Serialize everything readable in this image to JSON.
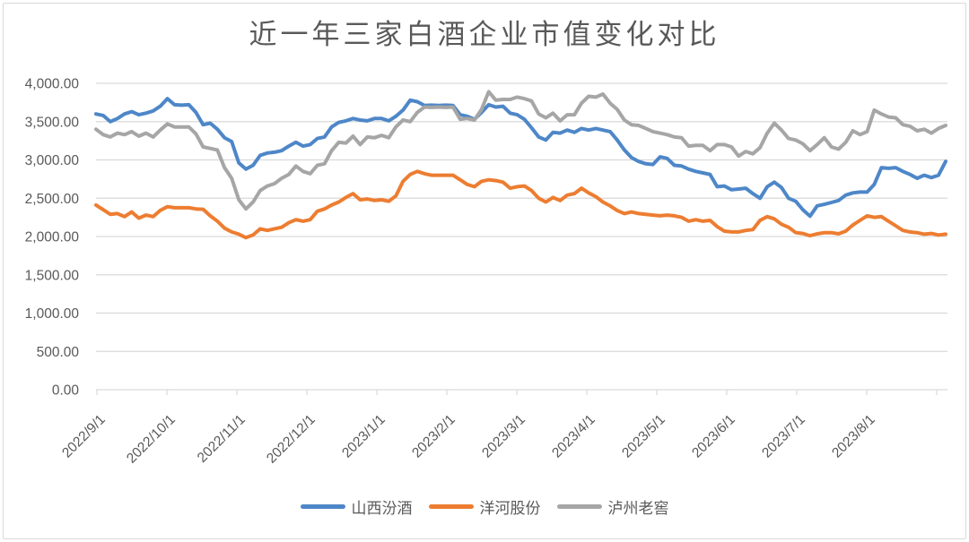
{
  "chart_data": {
    "type": "line",
    "title": "近一年三家白酒企业市值变化对比",
    "xlabel": "",
    "ylabel": "",
    "ylim": [
      0,
      4000
    ],
    "y_tick_step": 500,
    "grid": "horizontal",
    "legend_position": "bottom",
    "y_tick_labels": [
      "0.00",
      "500.00",
      "1,000.00",
      "1,500.00",
      "2,000.00",
      "2,500.00",
      "3,000.00",
      "3,500.00",
      "4,000.00"
    ],
    "x_tick_labels": [
      "2022/9/1",
      "2022/10/1",
      "2022/11/1",
      "2022/12/1",
      "2023/1/1",
      "2023/2/1",
      "2023/3/1",
      "2023/4/1",
      "2023/5/1",
      "2023/6/1",
      "2023/7/1",
      "2023/8/1"
    ],
    "colors": {
      "grid": "#d9d9d9",
      "axis": "#d9d9d9",
      "text": "#595959",
      "title_text": "#595959",
      "frame_border": "#d9d9d9",
      "background": "#ffffff"
    },
    "series": [
      {
        "name": "山西汾酒",
        "slug": "shanxi-fenjiu",
        "color": "#4E87C8",
        "values": [
          3600,
          3580,
          3500,
          3540,
          3600,
          3630,
          3590,
          3610,
          3640,
          3700,
          3800,
          3720,
          3715,
          3720,
          3620,
          3460,
          3480,
          3400,
          3290,
          3240,
          2960,
          2880,
          2930,
          3060,
          3090,
          3100,
          3120,
          3180,
          3230,
          3180,
          3200,
          3280,
          3300,
          3430,
          3490,
          3510,
          3540,
          3520,
          3510,
          3540,
          3540,
          3510,
          3570,
          3650,
          3780,
          3760,
          3710,
          3715,
          3710,
          3715,
          3710,
          3590,
          3570,
          3530,
          3620,
          3720,
          3690,
          3700,
          3610,
          3590,
          3530,
          3420,
          3300,
          3260,
          3360,
          3350,
          3390,
          3360,
          3410,
          3390,
          3410,
          3390,
          3370,
          3260,
          3130,
          3030,
          2980,
          2950,
          2940,
          3040,
          3020,
          2930,
          2920,
          2880,
          2850,
          2830,
          2810,
          2650,
          2660,
          2610,
          2620,
          2630,
          2560,
          2500,
          2650,
          2710,
          2640,
          2500,
          2460,
          2350,
          2265,
          2400,
          2420,
          2445,
          2470,
          2540,
          2570,
          2580,
          2580,
          2680,
          2900,
          2890,
          2900,
          2850,
          2810,
          2760,
          2800,
          2770,
          2800,
          2980
        ]
      },
      {
        "name": "洋河股份",
        "slug": "yanghe-gufen",
        "color": "#ED7D31",
        "values": [
          2410,
          2350,
          2290,
          2300,
          2260,
          2320,
          2240,
          2280,
          2260,
          2340,
          2390,
          2375,
          2375,
          2375,
          2360,
          2355,
          2270,
          2200,
          2110,
          2060,
          2030,
          1985,
          2020,
          2100,
          2080,
          2100,
          2120,
          2180,
          2220,
          2200,
          2220,
          2330,
          2360,
          2410,
          2450,
          2510,
          2560,
          2480,
          2490,
          2470,
          2480,
          2460,
          2530,
          2720,
          2810,
          2850,
          2820,
          2800,
          2800,
          2800,
          2800,
          2740,
          2680,
          2650,
          2720,
          2740,
          2730,
          2710,
          2630,
          2650,
          2660,
          2600,
          2500,
          2450,
          2510,
          2470,
          2540,
          2560,
          2630,
          2570,
          2520,
          2450,
          2400,
          2340,
          2300,
          2320,
          2300,
          2290,
          2280,
          2270,
          2280,
          2270,
          2250,
          2200,
          2220,
          2200,
          2210,
          2130,
          2070,
          2060,
          2060,
          2080,
          2090,
          2210,
          2260,
          2230,
          2160,
          2120,
          2050,
          2040,
          2010,
          2035,
          2050,
          2050,
          2035,
          2070,
          2150,
          2210,
          2270,
          2250,
          2260,
          2200,
          2140,
          2080,
          2060,
          2050,
          2030,
          2040,
          2020,
          2030
        ]
      },
      {
        "name": "泸州老窖",
        "slug": "luzhou-laojiao",
        "color": "#A6A6A6",
        "values": [
          3400,
          3330,
          3300,
          3350,
          3330,
          3370,
          3310,
          3350,
          3300,
          3390,
          3470,
          3430,
          3430,
          3430,
          3340,
          3170,
          3150,
          3130,
          2900,
          2760,
          2480,
          2360,
          2450,
          2600,
          2660,
          2690,
          2760,
          2810,
          2920,
          2850,
          2820,
          2930,
          2950,
          3120,
          3230,
          3220,
          3310,
          3200,
          3300,
          3290,
          3320,
          3290,
          3430,
          3520,
          3500,
          3620,
          3690,
          3685,
          3690,
          3685,
          3690,
          3530,
          3540,
          3520,
          3660,
          3890,
          3780,
          3790,
          3790,
          3820,
          3800,
          3770,
          3600,
          3550,
          3610,
          3510,
          3590,
          3590,
          3740,
          3830,
          3820,
          3860,
          3740,
          3660,
          3520,
          3460,
          3450,
          3410,
          3370,
          3350,
          3330,
          3300,
          3290,
          3180,
          3190,
          3190,
          3120,
          3200,
          3200,
          3170,
          3050,
          3110,
          3080,
          3160,
          3350,
          3480,
          3390,
          3280,
          3260,
          3210,
          3120,
          3200,
          3290,
          3170,
          3140,
          3230,
          3380,
          3330,
          3370,
          3650,
          3600,
          3560,
          3550,
          3460,
          3440,
          3380,
          3400,
          3350,
          3410,
          3450
        ]
      }
    ]
  }
}
